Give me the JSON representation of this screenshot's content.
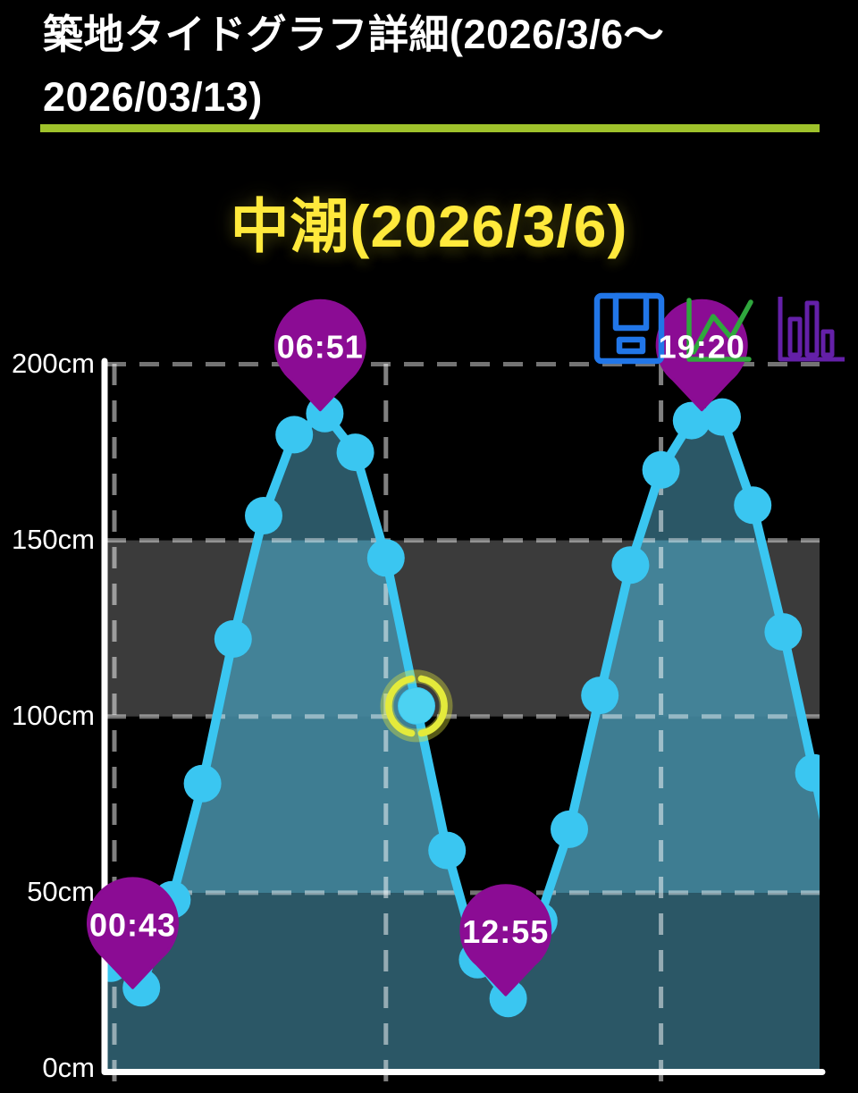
{
  "header": {
    "title_line1": "築地タイドグラフ詳細(2026/3/6〜",
    "title_line2": "2026/03/13)",
    "accent_color": "#9FC22B"
  },
  "chart_title": {
    "text": "中潮(2026/3/6)",
    "color": "#FFE93C"
  },
  "toolbar": {
    "icons": [
      {
        "name": "save",
        "color": "#2176E8"
      },
      {
        "name": "line-chart",
        "color": "#2FA73D"
      },
      {
        "name": "bar-chart",
        "color": "#6420A8"
      }
    ]
  },
  "chart_data": {
    "type": "area",
    "title": "中潮(2026/3/6)",
    "unit": "cm",
    "xlabel": "",
    "ylabel": "",
    "x_hours": [
      0,
      1,
      2,
      3,
      4,
      5,
      6,
      7,
      8,
      9,
      10,
      11,
      12,
      13,
      14,
      15,
      16,
      17,
      18,
      19,
      20,
      21,
      22,
      23
    ],
    "values_cm": [
      30,
      23,
      48,
      81,
      122,
      157,
      180,
      186,
      175,
      145,
      103,
      62,
      31,
      20,
      42,
      68,
      106,
      143,
      170,
      184,
      185,
      160,
      124,
      84
    ],
    "ylim": [
      0,
      200
    ],
    "ytick_labels": [
      "200cm",
      "150cm",
      "100cm",
      "50cm",
      "0cm"
    ],
    "ytick_values": [
      200,
      150,
      100,
      50,
      0
    ],
    "grid_vertical_hours": [
      0,
      9,
      18
    ],
    "grid_on": true,
    "extremes": [
      {
        "label": "00:43",
        "hour": 0.717,
        "value_cm": 22,
        "type": "low"
      },
      {
        "label": "06:51",
        "hour": 6.85,
        "value_cm": 186,
        "type": "high"
      },
      {
        "label": "12:55",
        "hour": 12.917,
        "value_cm": 20,
        "type": "low"
      },
      {
        "label": "19:20",
        "hour": 19.333,
        "value_cm": 186,
        "type": "high"
      }
    ],
    "highlight": {
      "hour": 10,
      "value_cm": 103
    },
    "colors": {
      "curve": "#3AC6F1",
      "dot": "#3AC6F1",
      "fill": "rgba(69,139,162,0.9)",
      "band": "#3B3B3B",
      "band_overlay": "rgba(0,0,0,0.3)",
      "grid_h": "rgba(255,255,255,0.45)",
      "grid_v": "rgba(255,255,255,0.5)",
      "axis": "#FFFFFF",
      "pin": "#8B0C94",
      "pin_text": "#FFFFFF",
      "highlight_ring": "#E4EA3B",
      "highlight_dot": "#4CD2F2"
    }
  }
}
